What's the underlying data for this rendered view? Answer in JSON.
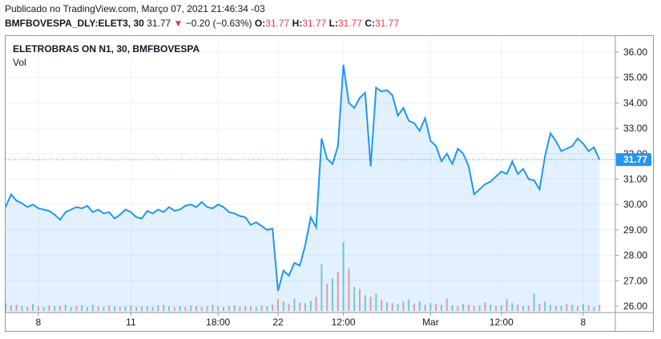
{
  "header": {
    "published": "Publicado no TradingView.com, Março 07, 2021 21:46:34 -03",
    "symbol": "BMFBOVESPA_DLY:ELET3, 30",
    "last": "31.77",
    "change_arrow": "▼",
    "change": "−0.20 (−0.63%)",
    "o_label": "O:",
    "o_value": "31.77",
    "h_label": "H:",
    "h_value": "31.77",
    "l_label": "L:",
    "l_value": "31.77",
    "c_label": "C:",
    "c_value": "31.77"
  },
  "legend": {
    "title": "ELETROBRAS ON N1, 30, BMFBOVESPA",
    "vol": "Vol"
  },
  "price_tag": "31.77",
  "colors": {
    "line": "#2196f3",
    "area": "#2196f3",
    "vol_up": "#26a69a",
    "vol_down": "#ef5350",
    "grid": "#eef1f6",
    "price_tag": "#2196f3"
  },
  "chart_data": {
    "type": "area",
    "title": "ELETROBRAS ON N1, 30, BMFBOVESPA",
    "ylim": [
      25.8,
      36.4
    ],
    "y_ticks": [
      "36.00",
      "35.00",
      "34.00",
      "33.00",
      "32.00",
      "31.00",
      "30.00",
      "29.00",
      "28.00",
      "27.00",
      "26.00"
    ],
    "x_ticks": [
      {
        "label": "8",
        "bar": 6
      },
      {
        "label": "11",
        "bar": 23
      },
      {
        "label": "18:00",
        "bar": 39
      },
      {
        "label": "22",
        "bar": 50
      },
      {
        "label": "12:00",
        "bar": 62
      },
      {
        "label": "Mar",
        "bar": 78
      },
      {
        "label": "12:00",
        "bar": 91
      },
      {
        "label": "8",
        "bar": 106
      }
    ],
    "grid": true,
    "series": [
      {
        "values": [
          29.9,
          30.4,
          30.15,
          30.05,
          29.9,
          30.0,
          29.85,
          29.8,
          29.75,
          29.6,
          29.4,
          29.7,
          29.8,
          29.9,
          29.85,
          29.95,
          29.7,
          29.8,
          29.65,
          29.7,
          29.45,
          29.6,
          29.8,
          29.7,
          29.5,
          29.45,
          29.75,
          29.65,
          29.8,
          29.7,
          29.9,
          29.75,
          29.8,
          29.95,
          30.0,
          29.9,
          30.1,
          29.9,
          29.85,
          30.0,
          29.9,
          29.7,
          29.65,
          29.55,
          29.5,
          29.2,
          29.3,
          29.15,
          29.0,
          29.05,
          26.6,
          27.4,
          27.2,
          27.7,
          27.6,
          28.4,
          29.5,
          29.1,
          32.6,
          31.8,
          31.6,
          32.3,
          35.5,
          34.0,
          33.8,
          34.2,
          34.4,
          31.5,
          34.6,
          34.45,
          34.5,
          34.3,
          33.5,
          33.8,
          33.3,
          33.2,
          32.9,
          33.4,
          32.5,
          32.3,
          31.7,
          32.0,
          31.6,
          32.2,
          32.0,
          31.5,
          30.4,
          30.6,
          30.8,
          30.9,
          31.1,
          31.3,
          31.2,
          31.7,
          31.2,
          31.4,
          31.0,
          30.95,
          30.6,
          31.9,
          32.8,
          32.5,
          32.1,
          32.2,
          32.3,
          32.6,
          32.4,
          32.1,
          32.25,
          31.77
        ],
        "volumes": [
          1.0,
          0.7,
          0.8,
          0.6,
          0.5,
          0.9,
          0.6,
          0.5,
          0.7,
          0.6,
          0.6,
          0.8,
          0.5,
          0.6,
          0.7,
          0.5,
          0.8,
          0.6,
          0.5,
          0.7,
          0.6,
          0.5,
          0.6,
          0.7,
          0.5,
          0.6,
          0.6,
          0.5,
          0.7,
          0.8,
          0.6,
          0.5,
          0.6,
          0.5,
          0.7,
          0.6,
          0.5,
          0.6,
          0.8,
          0.6,
          0.5,
          0.6,
          0.7,
          0.5,
          0.6,
          0.6,
          0.5,
          0.7,
          0.6,
          0.8,
          1.5,
          1.2,
          0.9,
          1.6,
          1.1,
          1.0,
          1.3,
          1.8,
          6.0,
          3.5,
          4.2,
          5.0,
          8.8,
          5.4,
          3.1,
          2.8,
          2.0,
          1.8,
          2.2,
          1.4,
          1.1,
          1.0,
          0.9,
          1.2,
          1.5,
          0.9,
          1.2,
          0.8,
          1.0,
          0.9,
          0.8,
          1.6,
          0.7,
          0.6,
          0.9,
          0.8,
          0.6,
          0.7,
          1.1,
          0.8,
          0.6,
          0.7,
          1.5,
          1.0,
          0.8,
          0.6,
          0.7,
          2.2,
          0.9,
          1.2,
          0.8,
          0.6,
          0.7,
          0.9,
          0.8,
          0.6,
          0.9,
          0.7,
          0.5,
          0.8
        ],
        "volume_dir": [
          "u",
          "d",
          "d",
          "u",
          "d",
          "u",
          "d",
          "u",
          "d",
          "u",
          "d",
          "u",
          "u",
          "d",
          "u",
          "d",
          "u",
          "d",
          "u",
          "d",
          "u",
          "d",
          "u",
          "d",
          "u",
          "d",
          "u",
          "d",
          "u",
          "d",
          "u",
          "d",
          "u",
          "d",
          "u",
          "d",
          "u",
          "d",
          "u",
          "d",
          "u",
          "d",
          "u",
          "d",
          "u",
          "d",
          "u",
          "d",
          "u",
          "d",
          "d",
          "u",
          "d",
          "u",
          "d",
          "u",
          "u",
          "d",
          "u",
          "d",
          "u",
          "d",
          "u",
          "d",
          "u",
          "d",
          "u",
          "d",
          "u",
          "d",
          "u",
          "d",
          "u",
          "d",
          "u",
          "d",
          "u",
          "d",
          "u",
          "d",
          "u",
          "d",
          "u",
          "d",
          "u",
          "d",
          "d",
          "u",
          "d",
          "u",
          "d",
          "u",
          "d",
          "u",
          "d",
          "u",
          "d",
          "u",
          "d",
          "u",
          "u",
          "d",
          "u",
          "d",
          "u",
          "d",
          "u",
          "d",
          "u",
          "d"
        ]
      }
    ]
  }
}
